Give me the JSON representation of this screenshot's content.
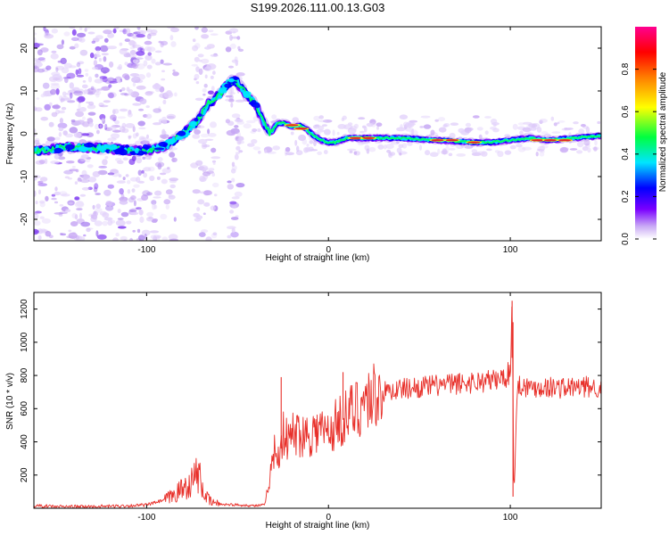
{
  "title": "S199.2026.111.00.13.G03",
  "colors": {
    "snr_line": "#e8302a",
    "ridge_core": "#e0202a"
  },
  "chart_data": [
    {
      "type": "heatmap",
      "name": "spectrogram",
      "xlabel": "Height of straight line (km)",
      "ylabel": "Frequency (Hz)",
      "xlim": [
        -162,
        150
      ],
      "ylim": [
        -25,
        25
      ],
      "xticks": [
        -100,
        0,
        100
      ],
      "xtick_labels": [
        "-100",
        "0",
        "100"
      ],
      "yticks": [
        -20,
        -10,
        0,
        10,
        20
      ],
      "ytick_labels": [
        "-20",
        "-10",
        "0",
        "10",
        "20"
      ],
      "ridge": {
        "x": [
          -160,
          -140,
          -120,
          -105,
          -95,
          -88,
          -80,
          -72,
          -66,
          -60,
          -55,
          -52,
          -50,
          -45,
          -40,
          -36,
          -32,
          -28,
          -24,
          -20,
          -16,
          -12,
          -8,
          -4,
          0,
          4,
          10,
          20,
          40,
          60,
          80,
          90,
          100,
          110,
          120,
          135,
          150
        ],
        "y": [
          -4,
          -3,
          -3.5,
          -4,
          -3.5,
          -2.5,
          0,
          3,
          7,
          9,
          12,
          12.5,
          12,
          9,
          7,
          3,
          0,
          2.5,
          2.5,
          1.5,
          2,
          1,
          -0.5,
          -1.5,
          -2,
          -2,
          -1,
          -1,
          -1,
          -1.5,
          -2,
          -2,
          -1.5,
          -1,
          -1.5,
          -1,
          -0.5
        ]
      },
      "colorbar": {
        "label": "Normalized spectral amplitude",
        "ticks": [
          0.0,
          0.2,
          0.4,
          0.6,
          0.8
        ],
        "tick_labels": [
          "0.0",
          "0.2",
          "0.4",
          "0.6",
          "0.8"
        ],
        "range": [
          0,
          1
        ],
        "colormap": [
          "#ffffff",
          "#c9a9f5",
          "#7a00ff",
          "#0000ff",
          "#00e5ff",
          "#00ff40",
          "#ffff00",
          "#ff7f00",
          "#ff0000",
          "#ff0090"
        ]
      }
    },
    {
      "type": "line",
      "name": "snr",
      "xlabel": "Height of straight line (km)",
      "ylabel": "SNR (10 * v/v)",
      "xlim": [
        -162,
        150
      ],
      "ylim": [
        0,
        1300
      ],
      "xticks": [
        -100,
        0,
        100
      ],
      "xtick_labels": [
        "-100",
        "0",
        "100"
      ],
      "yticks": [
        200,
        400,
        600,
        800,
        1000,
        1200
      ],
      "ytick_labels": [
        "200",
        "400",
        "600",
        "800",
        "1000",
        "1200"
      ],
      "series": [
        {
          "name": "SNR",
          "x": [
            -162,
            -150,
            -140,
            -130,
            -120,
            -110,
            -100,
            -90,
            -85,
            -80,
            -75,
            -72,
            -70,
            -68,
            -65,
            -60,
            -50,
            -40,
            -35,
            -32,
            -30,
            -28,
            -25,
            -22,
            -20,
            -15,
            -10,
            -5,
            0,
            5,
            10,
            15,
            20,
            25,
            30,
            40,
            50,
            60,
            70,
            80,
            90,
            95,
            98,
            100,
            101,
            102,
            104,
            106,
            110,
            120,
            130,
            140,
            150
          ],
          "y": [
            15,
            10,
            10,
            10,
            12,
            15,
            20,
            50,
            80,
            120,
            160,
            220,
            150,
            80,
            40,
            25,
            20,
            15,
            20,
            200,
            350,
            300,
            450,
            400,
            450,
            450,
            450,
            480,
            450,
            520,
            550,
            600,
            650,
            680,
            700,
            720,
            730,
            740,
            750,
            760,
            770,
            780,
            800,
            820,
            1250,
            70,
            750,
            740,
            730,
            730,
            725,
            730,
            730
          ]
        }
      ],
      "annotations": {
        "spikes": [
          {
            "x": -26,
            "y": 790
          },
          {
            "x": 8,
            "y": 820
          },
          {
            "x": 101,
            "y": 1250
          },
          {
            "x": 101.5,
            "y": 70
          }
        ]
      }
    }
  ]
}
